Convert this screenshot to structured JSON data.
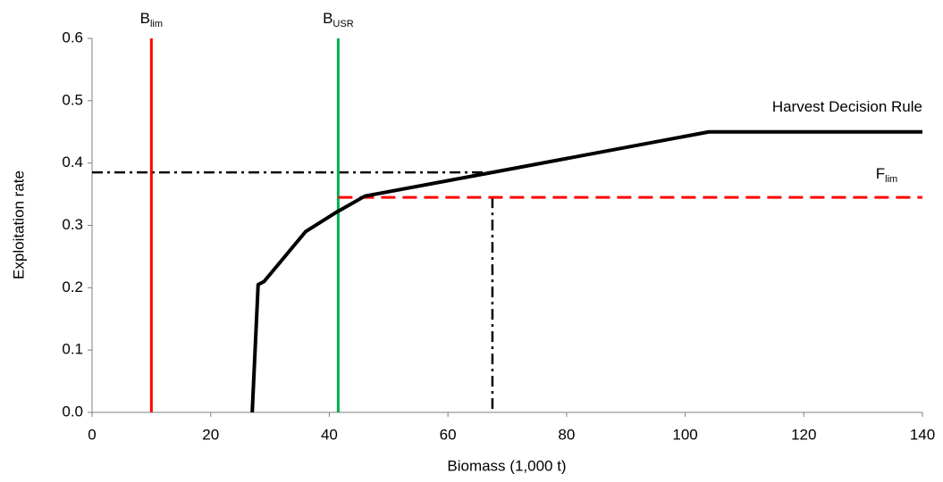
{
  "chart_data": {
    "type": "line",
    "x_label": "Biomass (1,000 t)",
    "y_label": "Exploitation rate",
    "xlim": [
      0,
      140
    ],
    "xticks": [
      0,
      20,
      40,
      60,
      80,
      100,
      120,
      140
    ],
    "ylim": [
      0,
      0.6
    ],
    "yticks": [
      {
        "value": 0,
        "label": "0.0"
      },
      0.1,
      0.2,
      0.3,
      0.4,
      0.5,
      0.6
    ],
    "series": [
      {
        "name": "Harvest Decision Rule",
        "color": "#000000",
        "x": [
          27,
          28,
          29,
          36,
          41,
          46,
          67.5,
          104,
          140
        ],
        "values": [
          0,
          0.205,
          0.21,
          0.29,
          0.32,
          0.347,
          0.385,
          0.45,
          0.45
        ]
      }
    ],
    "vlines": [
      {
        "label": "B",
        "label_sub": "lim",
        "x": 10,
        "color": "#ff0000"
      },
      {
        "label": "B",
        "label_sub": "USR",
        "x": 41.5,
        "color": "#00b050"
      }
    ],
    "hlines": [
      {
        "label": "F",
        "label_sub": "lim",
        "y": 0.345,
        "x": [
          41.5,
          140
        ],
        "color": "#ff0000"
      }
    ],
    "guides": [
      {
        "x": [
          0,
          67.5
        ],
        "values": [
          0.385,
          0.385
        ]
      },
      {
        "x": [
          67.5,
          67.5
        ],
        "values": [
          0.345,
          0
        ]
      }
    ]
  }
}
